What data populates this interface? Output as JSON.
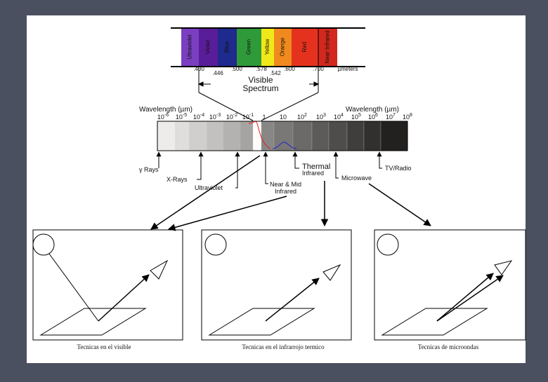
{
  "visible_bands": [
    {
      "label": "Ultraviolet",
      "color": "#7a3fc0"
    },
    {
      "label": "Violet",
      "color": "#5a1d9a"
    },
    {
      "label": "Blue",
      "color": "#1e2a8c"
    },
    {
      "label": "Green",
      "color": "#2f9a3a"
    },
    {
      "label": "Yellow",
      "color": "#f0e818"
    },
    {
      "label": "Orange",
      "color": "#f08a1e"
    },
    {
      "label": "Red",
      "color": "#e5321e"
    },
    {
      "label": "Near Infrared",
      "color": "#d2281e"
    }
  ],
  "micron_ticks": [
    ".400",
    ".446",
    ".500",
    ".578",
    ".542",
    ".600",
    ".700"
  ],
  "micron_unit": "µmeters",
  "visible_title": [
    "Visible",
    "Spectrum"
  ],
  "wavelength_label": "Wavelength (µm)",
  "scale_labels": [
    {
      "text": "10",
      "sup": "-6"
    },
    {
      "text": "10",
      "sup": "-5"
    },
    {
      "text": "10",
      "sup": "-4"
    },
    {
      "text": "10",
      "sup": "-3"
    },
    {
      "text": "10",
      "sup": "-2"
    },
    {
      "text": "10",
      "sup": "-1"
    },
    {
      "text": "1"
    },
    {
      "text": "10"
    },
    {
      "text": "10",
      "sup": "2"
    },
    {
      "text": "10",
      "sup": "3"
    },
    {
      "text": "10",
      "sup": "4"
    },
    {
      "text": "10",
      "sup": "5"
    },
    {
      "text": "10",
      "sup": "6"
    },
    {
      "text": "10",
      "sup": "7"
    },
    {
      "text": "10",
      "sup": "8"
    }
  ],
  "regions": [
    "γ Rays",
    "X-Rays",
    "Ultraviolet",
    "Near & Mid",
    "Infrared",
    "Thermal",
    "Infrared",
    "Microwave",
    "TV/Radio"
  ],
  "captions": [
    "Tecnicas en el visible",
    "Tecnicas en el infrarrojo termico",
    "Tecnicas de microondas"
  ]
}
